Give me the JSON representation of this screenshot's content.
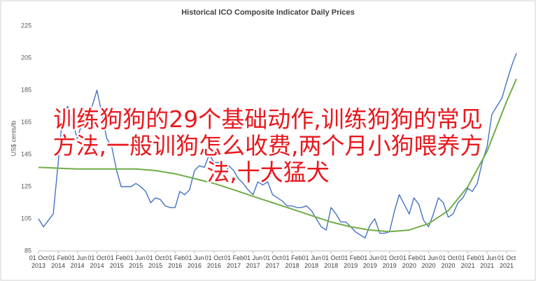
{
  "chart_data": {
    "type": "line",
    "title": "Historical ICO Composite Indicator Daily Prices",
    "ylabel": "US$ cents/lb",
    "ylim": [
      85,
      225
    ],
    "yticks": [
      85,
      105,
      125,
      145,
      165,
      185,
      205,
      225
    ],
    "xlim": [
      "2013-10-01",
      "2021-12-01"
    ],
    "xticks": [
      {
        "value": "2013-10-01",
        "label": "01 Oct 2013"
      },
      {
        "value": "2014-02-01",
        "label": "01 Feb 2014"
      },
      {
        "value": "2014-06-01",
        "label": "01 Jun 2014"
      },
      {
        "value": "2014-10-01",
        "label": "01 Oct 2014"
      },
      {
        "value": "2015-02-01",
        "label": "01 Feb 2015"
      },
      {
        "value": "2015-06-01",
        "label": "01 Jun 2015"
      },
      {
        "value": "2015-10-01",
        "label": "01 Oct 2015"
      },
      {
        "value": "2016-02-01",
        "label": "01 Feb 2016"
      },
      {
        "value": "2016-06-01",
        "label": "01 Jun 2016"
      },
      {
        "value": "2016-10-01",
        "label": "01 Oct 2016"
      },
      {
        "value": "2017-02-01",
        "label": "01 Feb 2017"
      },
      {
        "value": "2017-06-01",
        "label": "01 Jun 2017"
      },
      {
        "value": "2017-10-01",
        "label": "01 Oct 2017"
      },
      {
        "value": "2018-02-01",
        "label": "01 Feb 2018"
      },
      {
        "value": "2018-06-01",
        "label": "01 Jun 2018"
      },
      {
        "value": "2018-10-01",
        "label": "01 Oct 2018"
      },
      {
        "value": "2019-02-01",
        "label": "01 Feb 2019"
      },
      {
        "value": "2019-06-01",
        "label": "01 Jun 2019"
      },
      {
        "value": "2019-10-01",
        "label": "01 Oct 2019"
      },
      {
        "value": "2020-02-01",
        "label": "01 Feb 2020"
      },
      {
        "value": "2020-06-01",
        "label": "01 Jun 2020"
      },
      {
        "value": "2020-10-01",
        "label": "01 Oct 2020"
      },
      {
        "value": "2021-02-01",
        "label": "01 Feb 2021"
      },
      {
        "value": "2021-06-01",
        "label": "01 Jun 2021"
      },
      {
        "value": "2021-10-01",
        "label": "01 Oct 2021"
      }
    ],
    "series": [
      {
        "color": "#4472c4",
        "x": [
          "2013-10-01",
          "2013-11-01",
          "2013-12-01",
          "2014-01-01",
          "2014-02-01",
          "2014-03-01",
          "2014-04-01",
          "2014-05-01",
          "2014-06-01",
          "2014-07-01",
          "2014-08-01",
          "2014-09-01",
          "2014-10-01",
          "2014-11-01",
          "2014-12-01",
          "2015-01-01",
          "2015-02-01",
          "2015-03-01",
          "2015-04-01",
          "2015-05-01",
          "2015-06-01",
          "2015-07-01",
          "2015-08-01",
          "2015-09-01",
          "2015-10-01",
          "2015-11-01",
          "2015-12-01",
          "2016-01-01",
          "2016-02-01",
          "2016-03-01",
          "2016-04-01",
          "2016-05-01",
          "2016-06-01",
          "2016-07-01",
          "2016-08-01",
          "2016-09-01",
          "2016-10-01",
          "2016-11-01",
          "2016-12-01",
          "2017-01-01",
          "2017-02-01",
          "2017-03-01",
          "2017-04-01",
          "2017-05-01",
          "2017-06-01",
          "2017-07-01",
          "2017-08-01",
          "2017-09-01",
          "2017-10-01",
          "2017-11-01",
          "2017-12-01",
          "2018-01-01",
          "2018-02-01",
          "2018-03-01",
          "2018-04-01",
          "2018-05-01",
          "2018-06-01",
          "2018-07-01",
          "2018-08-01",
          "2018-09-01",
          "2018-10-01",
          "2018-11-01",
          "2018-12-01",
          "2019-01-01",
          "2019-02-01",
          "2019-03-01",
          "2019-04-01",
          "2019-05-01",
          "2019-06-01",
          "2019-07-01",
          "2019-08-01",
          "2019-09-01",
          "2019-10-01",
          "2019-11-01",
          "2019-12-01",
          "2020-01-01",
          "2020-02-01",
          "2020-03-01",
          "2020-04-01",
          "2020-05-01",
          "2020-06-01",
          "2020-07-01",
          "2020-08-01",
          "2020-09-01",
          "2020-10-01",
          "2020-11-01",
          "2020-12-01",
          "2021-01-01",
          "2021-02-01",
          "2021-03-01",
          "2021-04-01",
          "2021-05-01",
          "2021-06-01",
          "2021-07-01",
          "2021-08-01",
          "2021-09-01",
          "2021-10-01",
          "2021-11-01",
          "2021-12-01"
        ],
        "values": [
          105,
          100,
          104,
          108,
          140,
          170,
          175,
          165,
          155,
          165,
          170,
          175,
          185,
          170,
          155,
          150,
          135,
          125,
          125,
          125,
          127,
          125,
          122,
          115,
          118,
          117,
          113,
          112,
          112,
          122,
          120,
          123,
          135,
          138,
          137,
          145,
          140,
          140,
          130,
          138,
          135,
          130,
          127,
          123,
          120,
          128,
          126,
          128,
          120,
          118,
          116,
          113,
          113,
          112,
          112,
          113,
          110,
          105,
          100,
          98,
          112,
          108,
          103,
          103,
          100,
          97,
          95,
          93,
          101,
          105,
          96,
          96,
          97,
          110,
          120,
          114,
          108,
          118,
          114,
          104,
          100,
          108,
          118,
          115,
          106,
          108,
          115,
          118,
          124,
          122,
          127,
          140,
          150,
          170,
          175,
          180,
          190,
          200,
          208
        ]
      },
      {
        "color": "#70ad47",
        "x": [
          "2013-10-01",
          "2014-02-01",
          "2014-06-01",
          "2014-10-01",
          "2015-02-01",
          "2015-06-01",
          "2015-10-01",
          "2016-02-01",
          "2016-06-01",
          "2016-10-01",
          "2017-02-01",
          "2017-06-01",
          "2017-10-01",
          "2018-02-01",
          "2018-06-01",
          "2018-10-01",
          "2019-02-01",
          "2019-06-01",
          "2019-10-01",
          "2020-02-01",
          "2020-06-01",
          "2020-10-01",
          "2021-02-01",
          "2021-06-01",
          "2021-10-01",
          "2021-12-01"
        ],
        "values": [
          137,
          136.5,
          136,
          136,
          136,
          136,
          135,
          133,
          130,
          127,
          123,
          119,
          115,
          111,
          107,
          103,
          100,
          98,
          97,
          98,
          102,
          110,
          125,
          147,
          178,
          192
        ]
      }
    ]
  },
  "overlay": {
    "lines": [
      "训练狗狗的29个基础动作,训练狗狗的常见",
      "方法,一般训狗怎么收费,两个月小狗喂养方",
      "法,十大猛犬"
    ]
  }
}
